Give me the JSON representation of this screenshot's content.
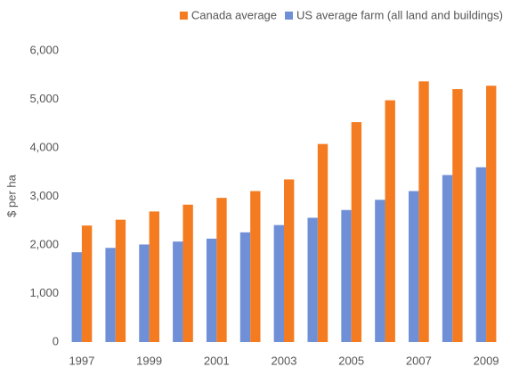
{
  "chart_data": {
    "type": "bar",
    "y_label": "$ per ha",
    "categories": [
      "1997",
      null,
      "1999",
      null,
      "2001",
      null,
      "2003",
      null,
      "2005",
      null,
      "2007",
      null,
      "2009"
    ],
    "series": [
      {
        "name": "Canada average",
        "color": "#f47b20",
        "values": [
          2400,
          2520,
          2690,
          2830,
          2970,
          3110,
          3350,
          4080,
          4530,
          4980,
          5370,
          5210,
          5280
        ]
      },
      {
        "name": "US average farm (all land and buildings)",
        "color": "#6f8fd6",
        "values": [
          1850,
          1940,
          2010,
          2070,
          2130,
          2260,
          2410,
          2560,
          2720,
          2930,
          3110,
          3440,
          3600
        ]
      }
    ],
    "ylim": [
      0,
      6000
    ],
    "yticks": [
      0,
      {
        "value": 1000,
        "label": "1,000"
      },
      {
        "value": 2000,
        "label": "2,000"
      },
      {
        "value": 3000,
        "label": "3,000"
      },
      {
        "value": 4000,
        "label": "4,000"
      },
      {
        "value": 5000,
        "label": "5,000"
      },
      {
        "value": 6000,
        "label": "6,000"
      }
    ],
    "grid": false,
    "legend": "top-right"
  }
}
